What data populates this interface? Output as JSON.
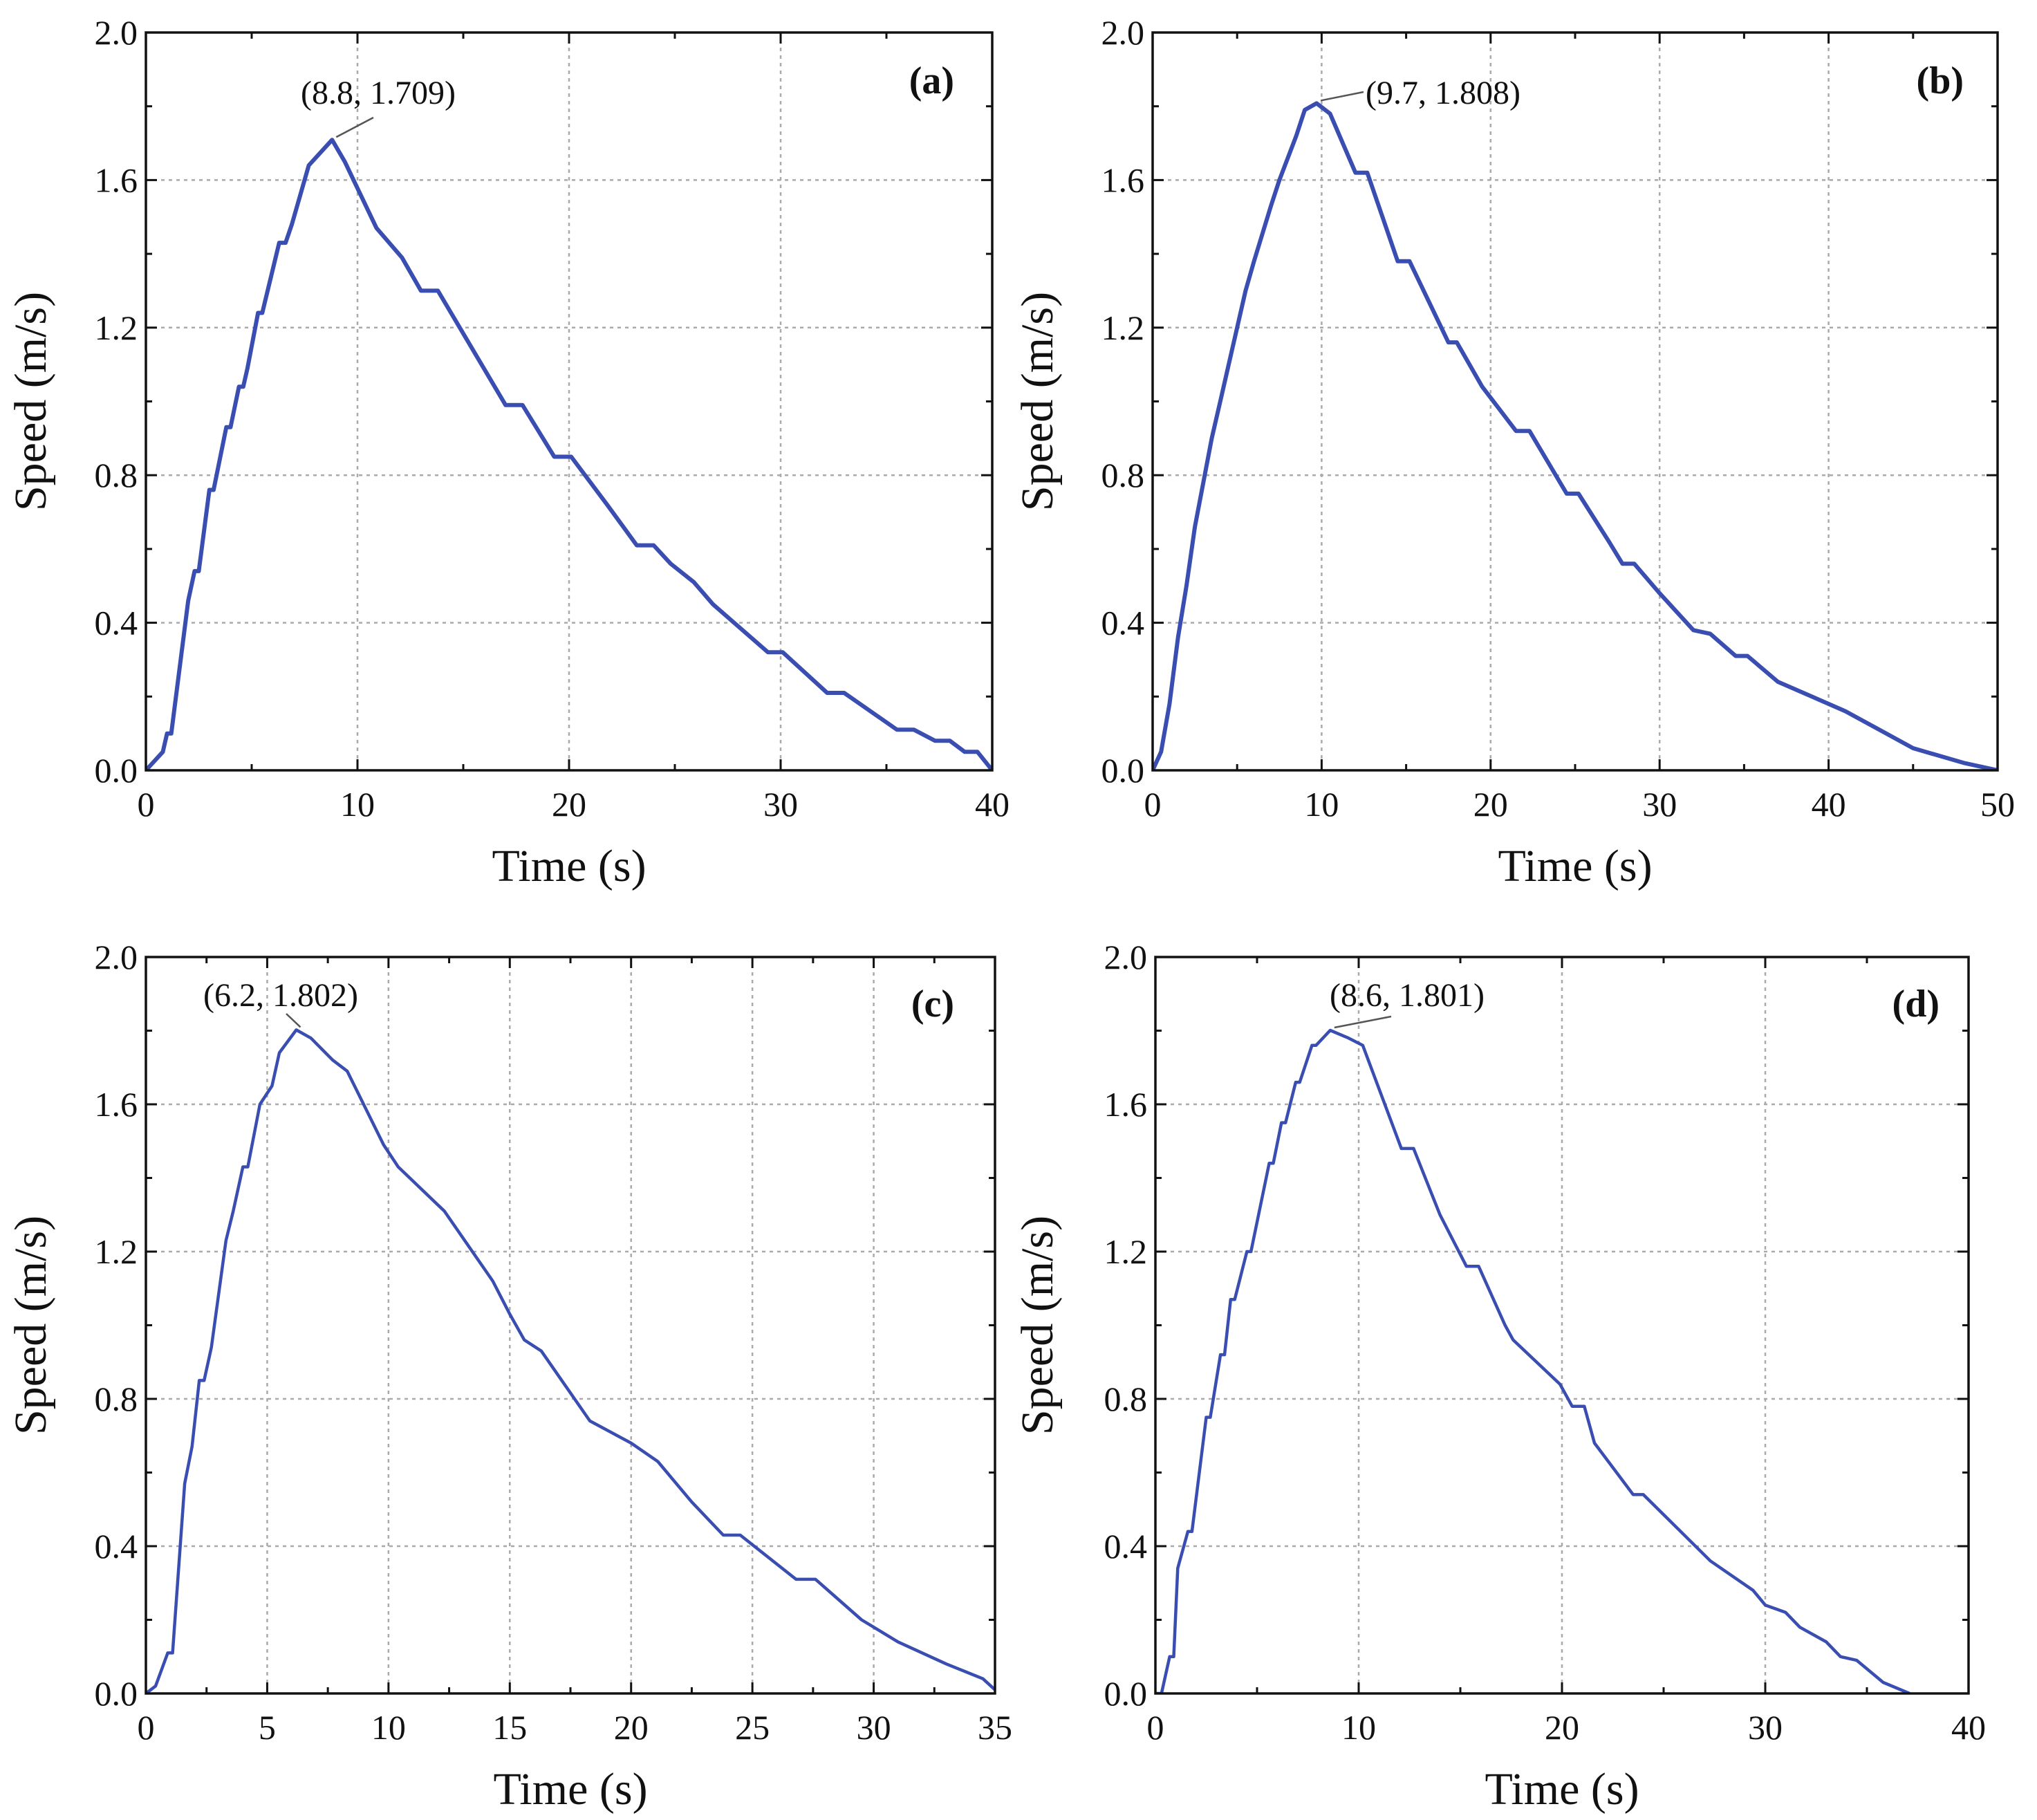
{
  "chart_data": [
    {
      "type": "line",
      "panel_label": "(a)",
      "xlabel": "Time (s)",
      "ylabel": "Speed (m/s)",
      "xlim": [
        0,
        40
      ],
      "ylim": [
        0,
        2.0
      ],
      "xticks": [
        "0",
        "10",
        "20",
        "30",
        "40"
      ],
      "yticks": [
        "0.0",
        "0.4",
        "0.8",
        "1.2",
        "1.6",
        "2.0"
      ],
      "grid": true,
      "annotation": {
        "text": "(8.8, 1.709)",
        "x": 8.8,
        "y": 1.709
      },
      "series": [
        {
          "name": "speed",
          "color": "#3a4db0",
          "x": [
            0,
            0.8,
            1,
            1.2,
            2,
            2.3,
            2.5,
            3,
            3.2,
            3.8,
            4,
            4.4,
            4.6,
            4.8,
            5.3,
            5.5,
            6.3,
            6.6,
            6.9,
            7.7,
            8.8,
            9.4,
            10.9,
            12.1,
            13,
            13.8,
            17,
            17.8,
            19.3,
            20.1,
            21.8,
            23.2,
            24,
            24.8,
            25.9,
            26.8,
            29.4,
            30.1,
            32.2,
            33,
            35.5,
            36.3,
            37.3,
            38,
            38.7,
            39.3,
            40
          ],
          "y": [
            0,
            0.05,
            0.1,
            0.1,
            0.46,
            0.54,
            0.54,
            0.76,
            0.76,
            0.93,
            0.93,
            1.04,
            1.04,
            1.09,
            1.24,
            1.24,
            1.43,
            1.43,
            1.48,
            1.64,
            1.709,
            1.65,
            1.47,
            1.39,
            1.3,
            1.3,
            0.99,
            0.99,
            0.85,
            0.85,
            0.72,
            0.61,
            0.61,
            0.56,
            0.51,
            0.45,
            0.32,
            0.32,
            0.21,
            0.21,
            0.11,
            0.11,
            0.08,
            0.08,
            0.05,
            0.05,
            0
          ]
        }
      ]
    },
    {
      "type": "line",
      "panel_label": "(b)",
      "xlabel": "Time (s)",
      "ylabel": "Speed (m/s)",
      "xlim": [
        0,
        50
      ],
      "ylim": [
        0,
        2.0
      ],
      "xticks": [
        "0",
        "10",
        "20",
        "30",
        "40",
        "50"
      ],
      "yticks": [
        "0.0",
        "0.4",
        "0.8",
        "1.2",
        "1.6",
        "2.0"
      ],
      "grid": true,
      "annotation": {
        "text": "(9.7, 1.808)",
        "x": 9.7,
        "y": 1.808
      },
      "series": [
        {
          "name": "speed",
          "color": "#3a4db0",
          "x": [
            0,
            0.5,
            1,
            1.5,
            2,
            2.5,
            3.5,
            4,
            4.5,
            5,
            5.5,
            6,
            7,
            7.5,
            8,
            8.5,
            9,
            9.7,
            10.5,
            12,
            12.7,
            14.5,
            15.2,
            17.5,
            18,
            19.5,
            21.5,
            22.3,
            24.5,
            25.2,
            27,
            27.8,
            28.5,
            30,
            32,
            33,
            34.5,
            35.2,
            37,
            39,
            41,
            43,
            45,
            48,
            50
          ],
          "y": [
            0,
            0.05,
            0.18,
            0.36,
            0.5,
            0.66,
            0.9,
            1.0,
            1.1,
            1.2,
            1.3,
            1.38,
            1.53,
            1.6,
            1.66,
            1.72,
            1.79,
            1.808,
            1.78,
            1.62,
            1.62,
            1.38,
            1.38,
            1.16,
            1.16,
            1.04,
            0.92,
            0.92,
            0.75,
            0.75,
            0.62,
            0.56,
            0.56,
            0.48,
            0.38,
            0.37,
            0.31,
            0.31,
            0.24,
            0.2,
            0.16,
            0.11,
            0.06,
            0.02,
            0
          ]
        }
      ]
    },
    {
      "type": "line",
      "panel_label": "(c)",
      "xlabel": "Time (s)",
      "ylabel": "Speed (m/s)",
      "xlim": [
        0,
        35
      ],
      "ylim": [
        0,
        2.0
      ],
      "xticks": [
        "0",
        "5",
        "10",
        "15",
        "20",
        "25",
        "30",
        "35"
      ],
      "yticks": [
        "0.0",
        "0.4",
        "0.8",
        "1.2",
        "1.6",
        "2.0"
      ],
      "grid": true,
      "annotation": {
        "text": "(6.2, 1.802)",
        "x": 6.2,
        "y": 1.802
      },
      "series": [
        {
          "name": "speed",
          "color": "#3a4db0",
          "x": [
            0,
            0.4,
            0.9,
            1.1,
            1.6,
            1.9,
            2.2,
            2.4,
            2.7,
            3.3,
            3.6,
            4,
            4.2,
            4.7,
            5.2,
            5.5,
            6.2,
            6.8,
            7.7,
            8.3,
            9.8,
            10.4,
            12.3,
            14.3,
            15,
            15.6,
            16.3,
            18.3,
            20,
            21.1,
            22.5,
            23.8,
            24.5,
            26.8,
            27.6,
            29.5,
            31,
            33,
            34.5,
            35
          ],
          "y": [
            0,
            0.02,
            0.11,
            0.11,
            0.57,
            0.67,
            0.85,
            0.85,
            0.94,
            1.23,
            1.31,
            1.43,
            1.43,
            1.6,
            1.65,
            1.74,
            1.802,
            1.78,
            1.72,
            1.69,
            1.49,
            1.43,
            1.31,
            1.12,
            1.03,
            0.96,
            0.93,
            0.74,
            0.68,
            0.63,
            0.52,
            0.43,
            0.43,
            0.31,
            0.31,
            0.2,
            0.14,
            0.08,
            0.04,
            0.01
          ]
        }
      ]
    },
    {
      "type": "line",
      "panel_label": "(d)",
      "xlabel": "Time (s)",
      "ylabel": "Speed (m/s)",
      "xlim": [
        0,
        40
      ],
      "ylim": [
        0,
        2.0
      ],
      "xticks": [
        "0",
        "10",
        "20",
        "30",
        "40"
      ],
      "yticks": [
        "0.0",
        "0.4",
        "0.8",
        "1.2",
        "1.6",
        "2.0"
      ],
      "grid": true,
      "annotation": {
        "text": "(8.6, 1.801)",
        "x": 8.6,
        "y": 1.801
      },
      "series": [
        {
          "name": "speed",
          "color": "#3a4db0",
          "x": [
            0,
            0.3,
            0.7,
            0.9,
            1.1,
            1.6,
            1.8,
            2.5,
            2.7,
            3.2,
            3.4,
            3.7,
            3.9,
            4.5,
            4.7,
            5.6,
            5.8,
            6.2,
            6.4,
            6.9,
            7.1,
            7.7,
            7.9,
            8.6,
            9.5,
            10.2,
            12.1,
            12.7,
            14,
            15.3,
            15.9,
            17.2,
            17.6,
            19.9,
            20.5,
            21.1,
            21.6,
            23.5,
            24,
            26.2,
            27.3,
            29.4,
            30,
            31,
            31.7,
            33,
            33.7,
            34.5,
            35.8,
            37.1
          ],
          "y": [
            0,
            0,
            0.1,
            0.1,
            0.34,
            0.44,
            0.44,
            0.75,
            0.75,
            0.92,
            0.92,
            1.07,
            1.07,
            1.2,
            1.2,
            1.44,
            1.44,
            1.55,
            1.55,
            1.66,
            1.66,
            1.76,
            1.76,
            1.801,
            1.78,
            1.76,
            1.48,
            1.48,
            1.3,
            1.16,
            1.16,
            1.0,
            0.96,
            0.84,
            0.78,
            0.78,
            0.68,
            0.54,
            0.54,
            0.42,
            0.36,
            0.28,
            0.24,
            0.22,
            0.18,
            0.14,
            0.1,
            0.09,
            0.03,
            0
          ]
        }
      ]
    }
  ]
}
